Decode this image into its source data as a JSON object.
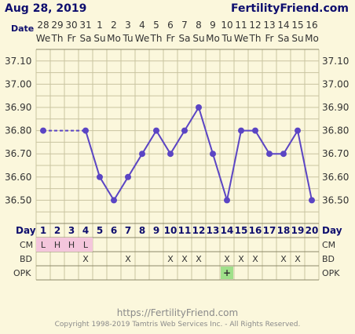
{
  "header": {
    "date_label": "Aug 28, 2019",
    "site_name": "FertilityFriend.com",
    "date_row_label": "Date"
  },
  "footer": {
    "url": "https://FertilityFriend.com",
    "copyright": "Copyright 1998-2019 Tamtris Web Services Inc. - All Rights Reserved."
  },
  "row_labels": {
    "day": "Day",
    "cm": "CM",
    "bd": "BD",
    "opk": "OPK"
  },
  "colors": {
    "background": "#fbf7dc",
    "grid": "#c9c4a0",
    "series": "#5b45c4",
    "cm_fill": "#f4c6dc",
    "opk_positive": "#9fe08a",
    "title_text": "#0e0e6e"
  },
  "chart_data": {
    "type": "line",
    "days": [
      "1",
      "2",
      "3",
      "4",
      "5",
      "6",
      "7",
      "8",
      "9",
      "10",
      "11",
      "12",
      "13",
      "14",
      "15",
      "16",
      "17",
      "18",
      "19",
      "20"
    ],
    "dates": [
      "28",
      "29",
      "30",
      "31",
      "1",
      "2",
      "3",
      "4",
      "5",
      "6",
      "7",
      "8",
      "9",
      "10",
      "11",
      "12",
      "13",
      "14",
      "15",
      "16"
    ],
    "weekdays": [
      "We",
      "Th",
      "Fr",
      "Sa",
      "Su",
      "Mo",
      "Tu",
      "We",
      "Th",
      "Fr",
      "Sa",
      "Su",
      "Mo",
      "Tu",
      "We",
      "Th",
      "Fr",
      "Sa",
      "Su",
      "Mo"
    ],
    "y_ticks": [
      "37.10",
      "37.00",
      "36.90",
      "36.80",
      "36.70",
      "36.60",
      "36.50"
    ],
    "ylim": [
      36.4,
      37.15
    ],
    "temperatures": [
      36.8,
      null,
      null,
      36.8,
      36.6,
      36.5,
      36.6,
      36.7,
      36.8,
      36.7,
      36.8,
      36.9,
      36.7,
      36.5,
      36.8,
      36.8,
      36.7,
      36.7,
      36.8,
      36.5
    ],
    "cm": [
      "L",
      "H",
      "H",
      "L",
      "",
      "",
      "",
      "",
      "",
      "",
      "",
      "",
      "",
      "",
      "",
      "",
      "",
      "",
      "",
      ""
    ],
    "bd": [
      "",
      "",
      "",
      "X",
      "",
      "",
      "X",
      "",
      "",
      "X",
      "X",
      "X",
      "",
      "X",
      "X",
      "X",
      "",
      "X",
      "X",
      ""
    ],
    "opk": [
      "",
      "",
      "",
      "",
      "",
      "",
      "",
      "",
      "",
      "",
      "",
      "",
      "",
      "+",
      "",
      "",
      "",
      "",
      "",
      ""
    ],
    "grid": true
  }
}
